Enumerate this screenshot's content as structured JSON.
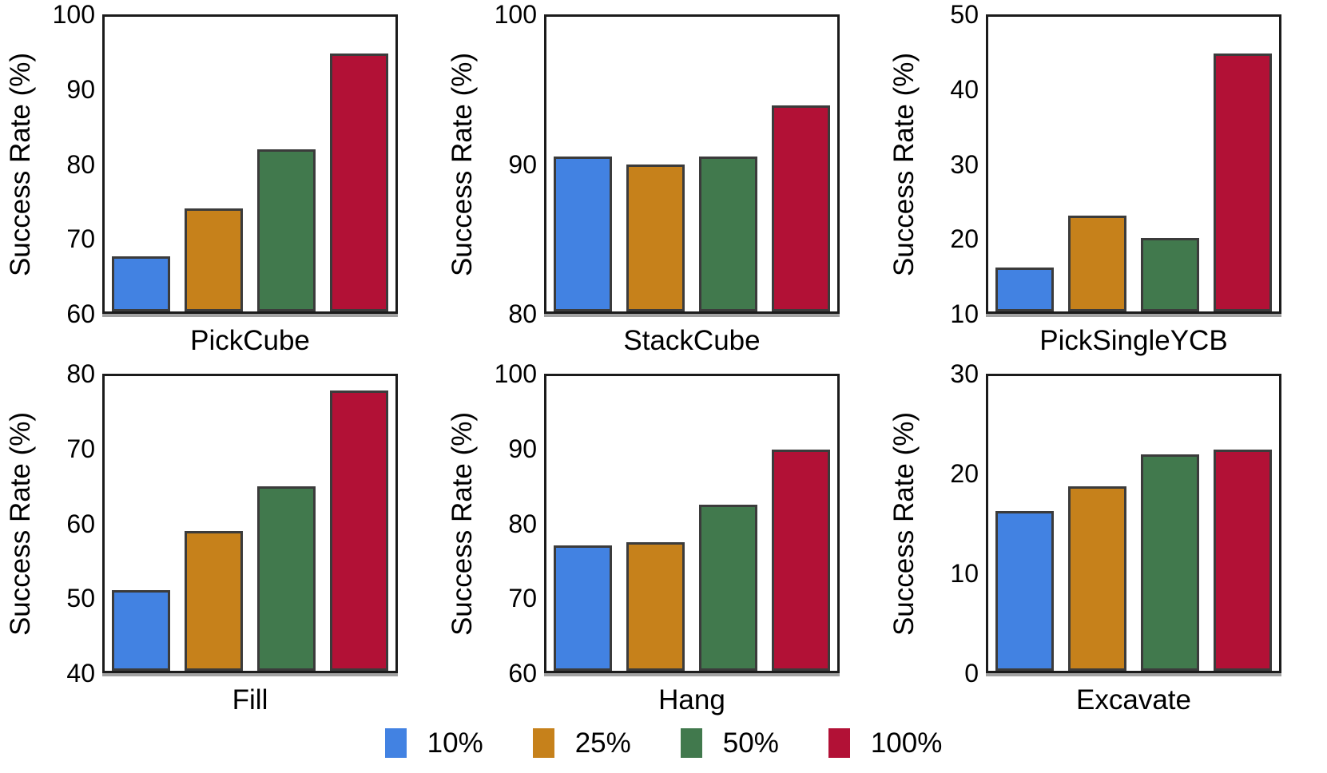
{
  "figure": {
    "shared_ylabel": "Success Rate (%)",
    "series_labels": [
      "10%",
      "25%",
      "50%",
      "100%"
    ]
  },
  "colors": {
    "series": [
      "#4282E2",
      "#C6811B",
      "#41794D",
      "#B21136"
    ],
    "bar_edge": "#3B3B3B",
    "axis": "#1B1B1B",
    "baseline_shadow": "#A2A2A2",
    "text": "#000000",
    "background": "#FFFFFF"
  },
  "legend": {
    "position": "bottom-center",
    "items": [
      {
        "label": "10%",
        "color": "#4282E2"
      },
      {
        "label": "25%",
        "color": "#C6811B"
      },
      {
        "label": "50%",
        "color": "#41794D"
      },
      {
        "label": "100%",
        "color": "#B21136"
      }
    ]
  },
  "chart_data": [
    {
      "type": "bar",
      "title": "PickCube",
      "ylabel": "Success Rate (%)",
      "ylim": [
        60,
        100
      ],
      "yticks": [
        60,
        70,
        80,
        90,
        100
      ],
      "categories": [
        "10%",
        "25%",
        "50%",
        "100%"
      ],
      "values": [
        67.5,
        74,
        82,
        95
      ],
      "grid": false,
      "legend_position": "shared-bottom"
    },
    {
      "type": "bar",
      "title": "StackCube",
      "ylabel": "Success Rate (%)",
      "ylim": [
        80,
        100
      ],
      "yticks": [
        80,
        90,
        100
      ],
      "categories": [
        "10%",
        "25%",
        "50%",
        "100%"
      ],
      "values": [
        90.5,
        90,
        90.5,
        94
      ],
      "grid": false,
      "legend_position": "shared-bottom"
    },
    {
      "type": "bar",
      "title": "PickSingleYCB",
      "ylabel": "Success Rate (%)",
      "ylim": [
        10,
        50
      ],
      "yticks": [
        10,
        20,
        30,
        40,
        50
      ],
      "categories": [
        "10%",
        "25%",
        "50%",
        "100%"
      ],
      "values": [
        16,
        23,
        20,
        45
      ],
      "grid": false,
      "legend_position": "shared-bottom"
    },
    {
      "type": "bar",
      "title": "Fill",
      "ylabel": "Success Rate (%)",
      "ylim": [
        40,
        80
      ],
      "yticks": [
        40,
        50,
        60,
        70,
        80
      ],
      "categories": [
        "10%",
        "25%",
        "50%",
        "100%"
      ],
      "values": [
        51,
        59,
        65,
        78
      ],
      "grid": false,
      "legend_position": "shared-bottom"
    },
    {
      "type": "bar",
      "title": "Hang",
      "ylabel": "Success Rate (%)",
      "ylim": [
        60,
        100
      ],
      "yticks": [
        60,
        70,
        80,
        90,
        100
      ],
      "categories": [
        "10%",
        "25%",
        "50%",
        "100%"
      ],
      "values": [
        77,
        77.5,
        82.5,
        90
      ],
      "grid": false,
      "legend_position": "shared-bottom"
    },
    {
      "type": "bar",
      "title": "Excavate",
      "ylabel": "Success Rate (%)",
      "ylim": [
        0,
        30
      ],
      "yticks": [
        0,
        10,
        20,
        30
      ],
      "categories": [
        "10%",
        "25%",
        "50%",
        "100%"
      ],
      "values": [
        16.3,
        18.8,
        22,
        22.5
      ],
      "grid": false,
      "legend_position": "shared-bottom"
    }
  ]
}
